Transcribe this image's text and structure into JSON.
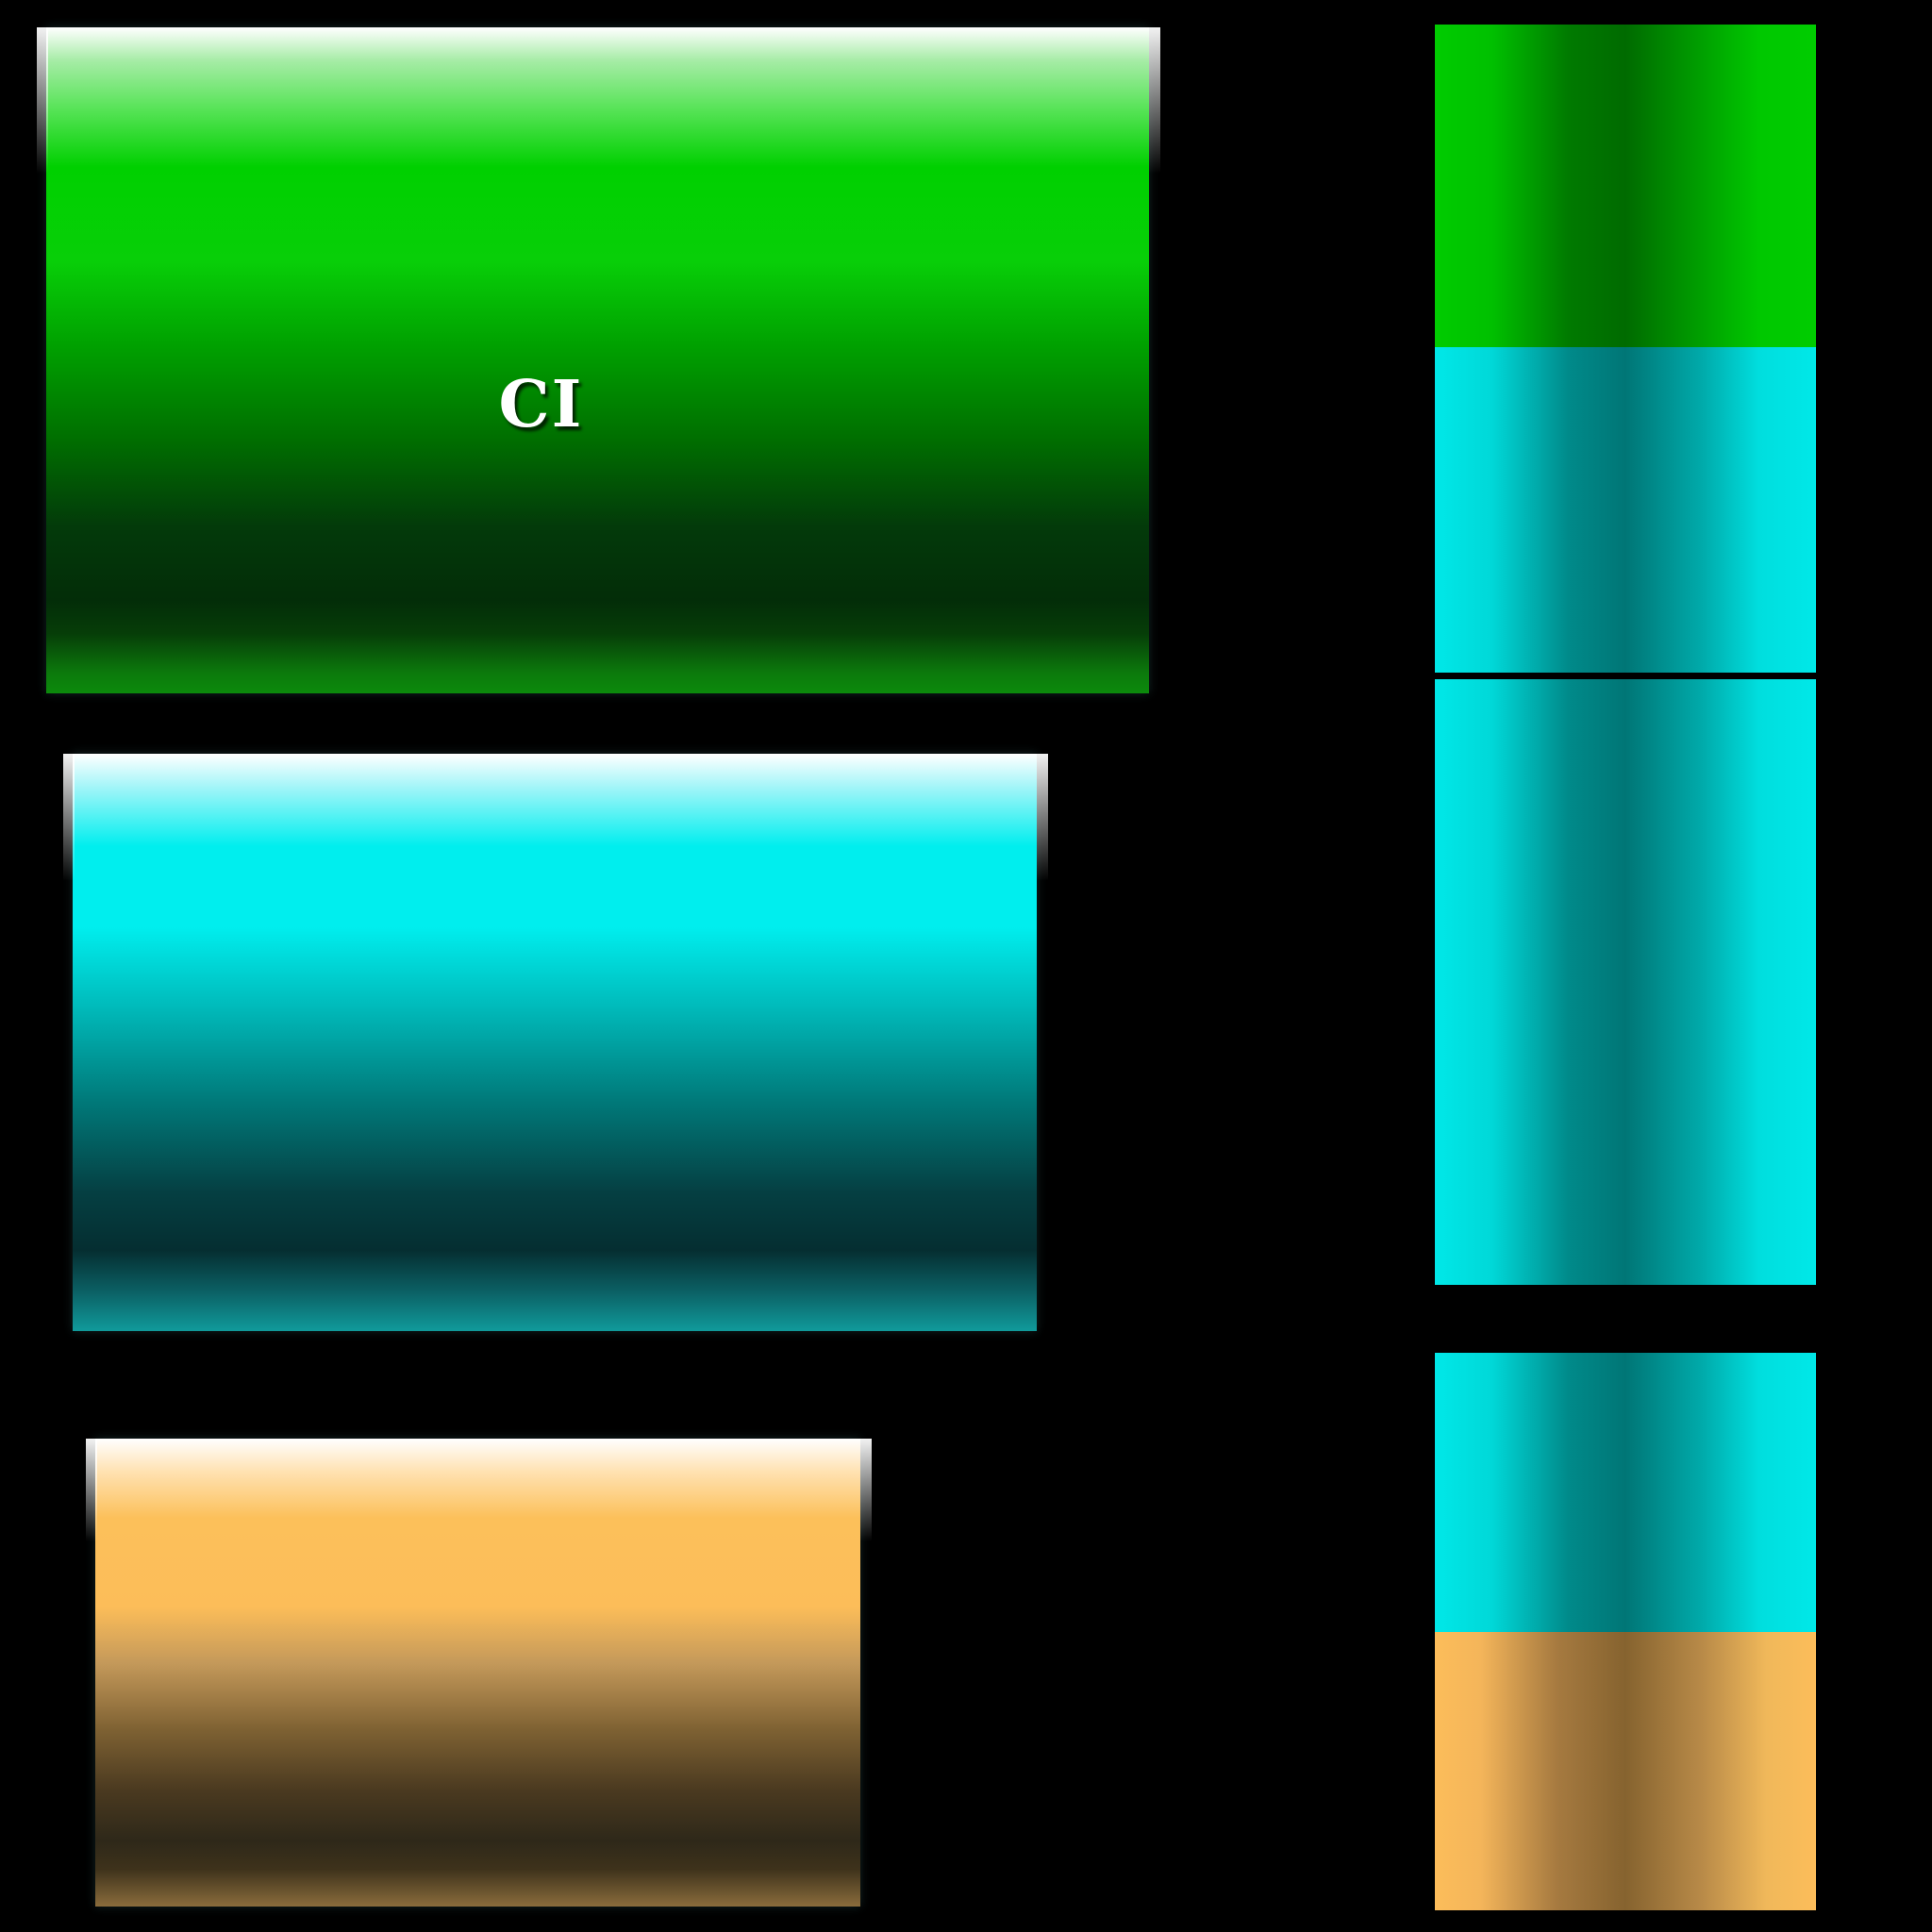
{
  "panels": {
    "green": {
      "label": "CI",
      "color": "#00d000"
    },
    "cyan": {
      "label": "",
      "color": "#00eeee"
    },
    "orange": {
      "label": "",
      "color": "#fcbd59"
    }
  },
  "swatches": [
    {
      "name": "green",
      "color": "#00cc00"
    },
    {
      "name": "cyan",
      "color": "#00e8e8"
    },
    {
      "name": "cyan",
      "color": "#00e8e8"
    },
    {
      "name": "cyan",
      "color": "#00e8e8"
    },
    {
      "name": "orange",
      "color": "#fcbd5a"
    }
  ],
  "background": "#000000"
}
